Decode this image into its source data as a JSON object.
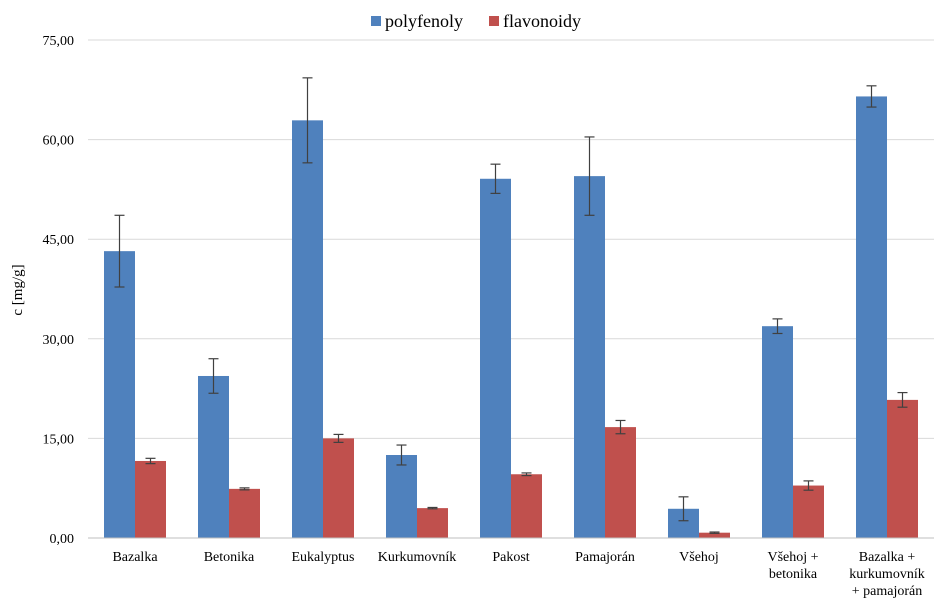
{
  "chart_data": {
    "type": "bar",
    "ylabel": "c [mg/g]",
    "xlabel": "",
    "ylim": [
      0,
      75
    ],
    "yticks": [
      0,
      15,
      30,
      45,
      60,
      75
    ],
    "ytick_labels": [
      "0,00",
      "15,00",
      "30,00",
      "45,00",
      "60,00",
      "75,00"
    ],
    "grid": true,
    "legend_position": "top",
    "categories": [
      [
        "Bazalka"
      ],
      [
        "Betonika"
      ],
      [
        "Eukalyptus"
      ],
      [
        "Kurkumovník"
      ],
      [
        "Pakost"
      ],
      [
        "Pamajorán"
      ],
      [
        "Všehoj"
      ],
      [
        "Všehoj +",
        "betonika"
      ],
      [
        "Bazalka +",
        "kurkumovník",
        "+ pamajorán"
      ]
    ],
    "series": [
      {
        "name": "polyfenoly",
        "color": "#4F81BD",
        "values": [
          43.2,
          24.4,
          62.9,
          12.5,
          54.1,
          54.5,
          4.4,
          31.9,
          66.5
        ],
        "errors": [
          5.4,
          2.6,
          6.4,
          1.5,
          2.2,
          5.9,
          1.8,
          1.1,
          1.6
        ]
      },
      {
        "name": "flavonoidy",
        "color": "#C0504D",
        "values": [
          11.6,
          7.4,
          15.0,
          4.5,
          9.6,
          16.7,
          0.8,
          7.9,
          20.8
        ],
        "errors": [
          0.4,
          0.15,
          0.6,
          0.1,
          0.2,
          1.0,
          0.1,
          0.7,
          1.1
        ]
      }
    ]
  }
}
